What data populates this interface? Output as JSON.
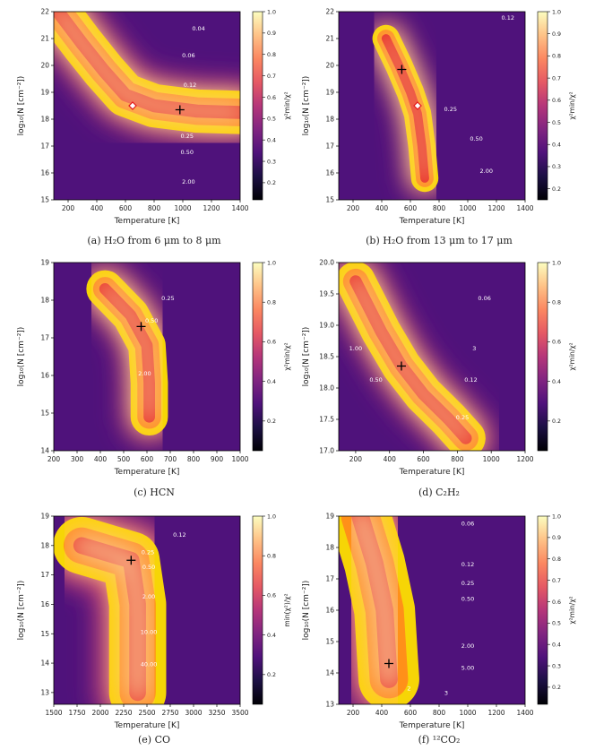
{
  "colors": {
    "colormap": [
      "#000004",
      "#1c1044",
      "#4f127b",
      "#812581",
      "#b5367a",
      "#e55964",
      "#fb8761",
      "#fec287",
      "#fcfdbf"
    ],
    "contour_red": "#e41a1c",
    "contour_orange": "#ff8c1a",
    "contour_yellow": "#ffe000",
    "contour_white": "#ffffff"
  },
  "chart_data": [
    {
      "panel": "a",
      "type": "heatmap",
      "caption": "(a) H₂O from 6 μm to 8 μm",
      "xlabel": "Temperature [K]",
      "ylabel": "log₁₀(N [cm⁻²])",
      "xlim": [
        100,
        1400
      ],
      "ylim": [
        15,
        22
      ],
      "xticks": [
        200,
        400,
        600,
        800,
        1000,
        1200,
        1400
      ],
      "yticks": [
        15,
        16,
        17,
        18,
        19,
        20,
        21,
        22
      ],
      "colorbar_label": "χ²min/χ²",
      "colorbar_range": [
        0.12,
        1.0
      ],
      "colorbar_ticks": [
        0.2,
        0.3,
        0.4,
        0.5,
        0.6,
        0.7,
        0.8,
        0.9,
        1.0
      ],
      "best_fit": {
        "x": 980,
        "y": 18.35
      },
      "diamond": {
        "x": 650,
        "y": 18.5
      },
      "ridge": [
        [
          130,
          22
        ],
        [
          300,
          20.8
        ],
        [
          450,
          19.8
        ],
        [
          600,
          18.9
        ],
        [
          800,
          18.5
        ],
        [
          1100,
          18.3
        ],
        [
          1400,
          18.25
        ]
      ],
      "ridge_width": 0.9,
      "contour_labels": [
        {
          "text": "0.04",
          "x": 1110,
          "y": 21.3
        },
        {
          "text": "0.06",
          "x": 1040,
          "y": 20.3
        },
        {
          "text": "0.12",
          "x": 1050,
          "y": 19.2
        },
        {
          "text": "0.25",
          "x": 1030,
          "y": 17.3
        },
        {
          "text": "0.50",
          "x": 1030,
          "y": 16.7
        },
        {
          "text": "2.00",
          "x": 1040,
          "y": 15.6
        }
      ]
    },
    {
      "panel": "b",
      "type": "heatmap",
      "caption": "(b) H₂O from 13 μm to 17 μm",
      "xlabel": "Temperature [K]",
      "ylabel": "log₁₀(N [cm⁻²])",
      "xlim": [
        100,
        1400
      ],
      "ylim": [
        15,
        22
      ],
      "xticks": [
        200,
        400,
        600,
        800,
        1000,
        1200,
        1400
      ],
      "yticks": [
        15,
        16,
        17,
        18,
        19,
        20,
        21,
        22
      ],
      "colorbar_label": "χ²min/χ²",
      "colorbar_range": [
        0.15,
        1.0
      ],
      "colorbar_ticks": [
        0.2,
        0.3,
        0.4,
        0.5,
        0.6,
        0.7,
        0.8,
        0.9,
        1.0
      ],
      "best_fit": {
        "x": 540,
        "y": 19.85
      },
      "diamond": {
        "x": 650,
        "y": 18.5
      },
      "ridge": [
        [
          430,
          21.0
        ],
        [
          520,
          20.0
        ],
        [
          600,
          19.0
        ],
        [
          650,
          18.2
        ],
        [
          680,
          17.0
        ],
        [
          700,
          15.8
        ]
      ],
      "ridge_width": 0.55,
      "contour_labels": [
        {
          "text": "0.12",
          "x": 1280,
          "y": 21.7
        },
        {
          "text": "0.25",
          "x": 880,
          "y": 18.3
        },
        {
          "text": "0.50",
          "x": 1060,
          "y": 17.2
        },
        {
          "text": "2.00",
          "x": 1130,
          "y": 16.0
        }
      ]
    },
    {
      "panel": "c",
      "type": "heatmap",
      "caption": "(c) HCN",
      "xlabel": "Temperature [K]",
      "ylabel": "log₁₀(N [cm⁻²])",
      "xlim": [
        200,
        1000
      ],
      "ylim": [
        14,
        19
      ],
      "xticks": [
        200,
        300,
        400,
        500,
        600,
        700,
        800,
        900,
        1000
      ],
      "yticks": [
        14,
        15,
        16,
        17,
        18,
        19
      ],
      "colorbar_label": "χ²min/χ²",
      "colorbar_range": [
        0.05,
        1.0
      ],
      "colorbar_ticks": [
        0.2,
        0.4,
        0.6,
        0.8,
        1.0
      ],
      "best_fit": {
        "x": 575,
        "y": 17.3
      },
      "ridge": [
        [
          420,
          18.3
        ],
        [
          530,
          17.6
        ],
        [
          600,
          16.8
        ],
        [
          610,
          15.8
        ],
        [
          610,
          14.9
        ]
      ],
      "ridge_width": 0.55,
      "contour_labels": [
        {
          "text": "0.25",
          "x": 690,
          "y": 18.0
        },
        {
          "text": "0.50",
          "x": 620,
          "y": 17.4
        },
        {
          "text": "2.00",
          "x": 590,
          "y": 16.0
        }
      ]
    },
    {
      "panel": "d",
      "type": "heatmap",
      "caption": "(d) C₂H₂",
      "xlabel": "Temperature [K]",
      "ylabel": "log₁₀(N [cm⁻²])",
      "xlim": [
        100,
        1200
      ],
      "ylim": [
        17.0,
        20.0
      ],
      "xticks": [
        200,
        400,
        600,
        800,
        1000,
        1200
      ],
      "yticks": [
        17.0,
        17.5,
        18.0,
        18.5,
        19.0,
        19.5,
        20.0
      ],
      "colorbar_label": "χ²min/χ²",
      "colorbar_range": [
        0.05,
        1.0
      ],
      "colorbar_ticks": [
        0.2,
        0.4,
        0.6,
        0.8,
        1.0
      ],
      "best_fit": {
        "x": 470,
        "y": 18.35
      },
      "ridge": [
        [
          200,
          19.7
        ],
        [
          350,
          18.9
        ],
        [
          470,
          18.35
        ],
        [
          600,
          17.9
        ],
        [
          750,
          17.5
        ],
        [
          850,
          17.2
        ]
      ],
      "ridge_width": 0.35,
      "contour_labels": [
        {
          "text": "0.06",
          "x": 960,
          "y": 19.4
        },
        {
          "text": "0.12",
          "x": 880,
          "y": 18.1
        },
        {
          "text": "0.25",
          "x": 830,
          "y": 17.5
        },
        {
          "text": "0.50",
          "x": 320,
          "y": 18.1
        },
        {
          "text": "1.00",
          "x": 200,
          "y": 18.6
        },
        {
          "text": "3",
          "x": 900,
          "y": 18.6
        }
      ]
    },
    {
      "panel": "e",
      "type": "heatmap",
      "caption": "(e) CO",
      "xlabel": "Temperature [K]",
      "ylabel": "log₁₀(N [cm⁻²])",
      "xlim": [
        1500,
        3500
      ],
      "ylim": [
        12.6,
        19
      ],
      "xticks": [
        1500,
        1750,
        2000,
        2250,
        2500,
        2750,
        3000,
        3250,
        3500
      ],
      "yticks": [
        13,
        14,
        15,
        16,
        17,
        18,
        19
      ],
      "colorbar_label": "min(χ²)/χ²",
      "colorbar_range": [
        0.05,
        1.0
      ],
      "colorbar_ticks": [
        0.2,
        0.4,
        0.6,
        0.8,
        1.0
      ],
      "best_fit": {
        "x": 2330,
        "y": 17.5
      },
      "ridge": [
        [
          1800,
          18.0
        ],
        [
          2330,
          17.5
        ],
        [
          2400,
          16.0
        ],
        [
          2400,
          14.5
        ],
        [
          2400,
          13.0
        ]
      ],
      "ridge_width": 1.1,
      "contour_labels": [
        {
          "text": "0.12",
          "x": 2850,
          "y": 18.3
        },
        {
          "text": "0.25",
          "x": 2510,
          "y": 17.7
        },
        {
          "text": "0.50",
          "x": 2520,
          "y": 17.2
        },
        {
          "text": "2.00",
          "x": 2520,
          "y": 16.2
        },
        {
          "text": "10.00",
          "x": 2520,
          "y": 15.0
        },
        {
          "text": "40.00",
          "x": 2520,
          "y": 13.9
        }
      ]
    },
    {
      "panel": "f",
      "type": "heatmap",
      "caption": "(f) ¹²CO₂",
      "xlabel": "Temperature [K]",
      "ylabel": "log₁₀(N [cm⁻²])",
      "xlim": [
        100,
        1400
      ],
      "ylim": [
        13,
        19
      ],
      "xticks": [
        200,
        400,
        600,
        800,
        1000,
        1200,
        1400
      ],
      "yticks": [
        13,
        14,
        15,
        16,
        17,
        18,
        19
      ],
      "colorbar_label": "χ²min/χ²",
      "colorbar_range": [
        0.12,
        1.0
      ],
      "colorbar_ticks": [
        0.2,
        0.3,
        0.4,
        0.5,
        0.6,
        0.7,
        0.8,
        0.9,
        1.0
      ],
      "best_fit": {
        "x": 450,
        "y": 14.3
      },
      "ridge": [
        [
          250,
          19.0
        ],
        [
          350,
          17.5
        ],
        [
          420,
          16.0
        ],
        [
          440,
          14.5
        ],
        [
          450,
          13.8
        ]
      ],
      "ridge_width": 1.1,
      "contour_labels": [
        {
          "text": "0.06",
          "x": 1000,
          "y": 18.7
        },
        {
          "text": "0.12",
          "x": 1000,
          "y": 17.4
        },
        {
          "text": "0.25",
          "x": 1000,
          "y": 16.8
        },
        {
          "text": "0.50",
          "x": 1000,
          "y": 16.3
        },
        {
          "text": "2.00",
          "x": 1000,
          "y": 14.8
        },
        {
          "text": "5.00",
          "x": 1000,
          "y": 14.1
        },
        {
          "text": "2",
          "x": 590,
          "y": 13.45
        },
        {
          "text": "3",
          "x": 850,
          "y": 13.3
        }
      ]
    }
  ]
}
